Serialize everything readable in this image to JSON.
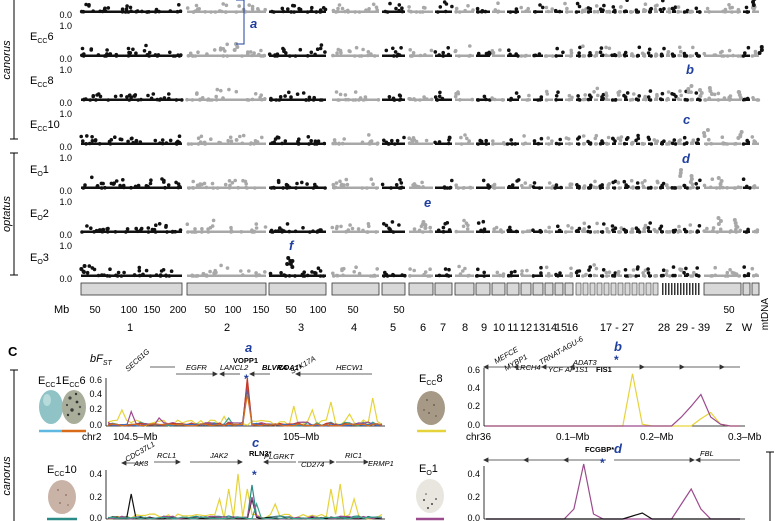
{
  "panel_b": {
    "group_labels": [
      "canorus",
      "optatus"
    ],
    "tracks": [
      {
        "name": "E",
        "sub": "CC",
        "suffix": "6"
      },
      {
        "name": "E",
        "sub": "CC",
        "suffix": "8"
      },
      {
        "name": "E",
        "sub": "CC",
        "suffix": "10"
      },
      {
        "name": "E",
        "sub": "O",
        "suffix": "1"
      },
      {
        "name": "E",
        "sub": "O",
        "suffix": "2"
      },
      {
        "name": "E",
        "sub": "O",
        "suffix": "3"
      }
    ],
    "y_ticks": [
      "0.0",
      "1.0",
      "0.0",
      "1.0",
      "0.0",
      "1.0",
      "0.0",
      "1.0",
      "0.0",
      "1.0",
      "0.0",
      "1.0",
      "0.0"
    ],
    "peak_letters": [
      "a",
      "b",
      "c",
      "d",
      "e",
      "f"
    ],
    "mb_label": "Mb",
    "mb_ticks": [
      "50",
      "100",
      "150",
      "200",
      "50",
      "100",
      "150",
      "50",
      "100",
      "50",
      "50",
      "50"
    ],
    "chromosomes": [
      "1",
      "2",
      "3",
      "4",
      "5",
      "6",
      "7",
      "8",
      "9",
      "10",
      "11",
      "12",
      "13",
      "14",
      "15",
      "16",
      "17 - 27",
      "28",
      "29 - 39",
      "Z",
      "W",
      "mtDNA"
    ]
  },
  "panel_c": {
    "label": "C",
    "group_label": "canorus",
    "y_label_main": "bF",
    "y_label_sub": "ST",
    "top_left": {
      "genes": [
        "SEC61G",
        "EGFR",
        "LANCL2",
        "VOPP1",
        "BLVRA",
        "COA1*",
        "STK17A",
        "HECW1"
      ],
      "letter": "a",
      "star": "*",
      "y_ticks": [
        "0.6",
        "0.4",
        "0.2",
        "0.0"
      ],
      "x_chr": "chr2",
      "x_ticks": [
        "104.5–Mb",
        "105–Mb"
      ],
      "egg_labels": [
        {
          "name": "E",
          "sub": "CC",
          "suffix": "1"
        },
        {
          "name": "E",
          "sub": "CC",
          "suffix": "6"
        }
      ]
    },
    "top_right": {
      "genes": [
        "MEFCE",
        "MYBP1",
        "LRCH4",
        "TRNAT-AGU-6",
        "YCF",
        "AP1S1",
        "ADAT3",
        "FIS1"
      ],
      "letter": "b",
      "star": "*",
      "y_ticks": [
        "0.6",
        "0.4",
        "0.2",
        "0.0"
      ],
      "x_chr": "chr36",
      "x_ticks": [
        "0.1–Mb",
        "0.2–Mb",
        "0.3–Mb"
      ],
      "egg_label": {
        "name": "E",
        "sub": "CC",
        "suffix": "8"
      }
    },
    "bottom_left": {
      "genes": [
        "CDC37L1",
        "AK3",
        "RCL1",
        "JAK2",
        "RLN3*",
        "PLGRKT",
        "CD274",
        "RIC1",
        "ERMP1"
      ],
      "letter": "c",
      "star": "*",
      "y_ticks": [
        "0.4",
        "0.2",
        "0.0"
      ],
      "egg_label": {
        "name": "E",
        "sub": "CC",
        "suffix": "10"
      }
    },
    "bottom_right": {
      "genes": [
        "FCGBP*",
        "FBL"
      ],
      "letter": "d",
      "star": "*",
      "y_ticks": [
        "0.4",
        "0.2",
        "0.0"
      ],
      "egg_label": {
        "name": "E",
        "sub": "O",
        "suffix": "1"
      }
    }
  },
  "colors": {
    "dark": "#111111",
    "grey": "#a8a8a8",
    "accent": "#1f3f9e",
    "yellow": "#e6d33a",
    "purple": "#9b4a8e",
    "green": "#3aa08a",
    "red": "#c43a2a",
    "blue": "#3a6ec4",
    "orange": "#d86b1a",
    "teal": "#2a8a86"
  }
}
